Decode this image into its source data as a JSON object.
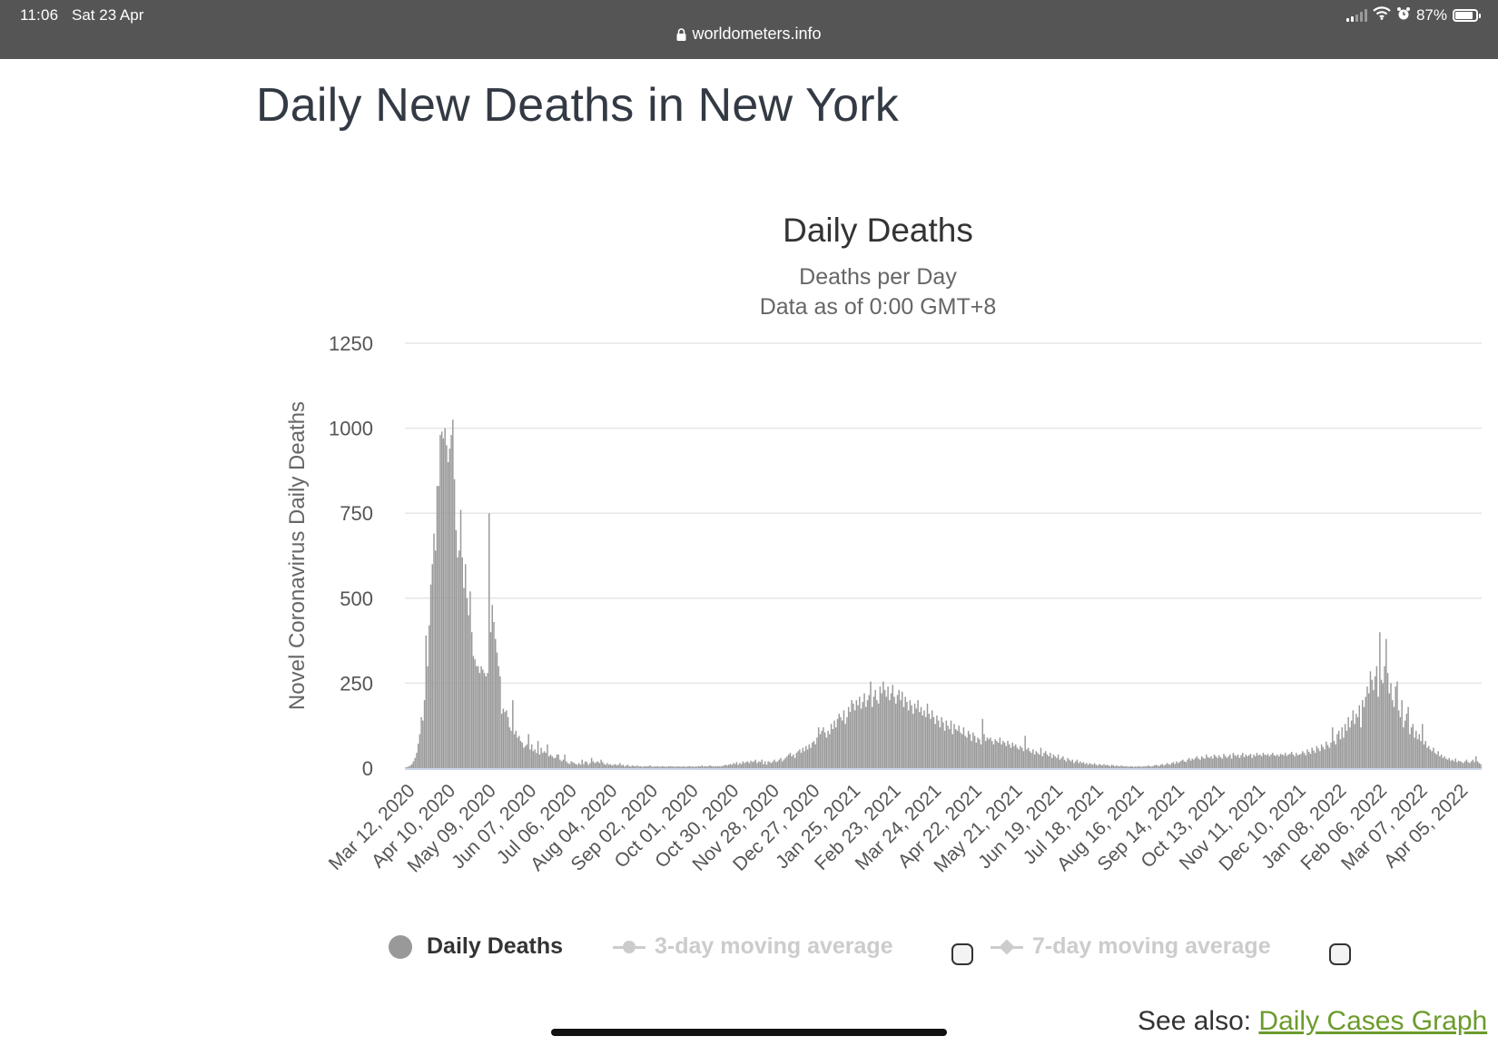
{
  "status_bar": {
    "time": "11:06",
    "date": "Sat 23 Apr",
    "url": "worldometers.info",
    "battery": "87%",
    "battery_level": 0.87,
    "icons": [
      "lock-icon",
      "signal-icon",
      "wifi-icon",
      "alarm-icon",
      "battery-icon"
    ]
  },
  "page": {
    "title": "Daily New Deaths in New York",
    "see_also_label": "See also: ",
    "see_also_link": "Daily Cases Graph"
  },
  "colors": {
    "bar": "#999999",
    "inactive_legend": "#cccccc",
    "link": "#6b9b2b",
    "status_bar": "#555555"
  },
  "legend": {
    "items": [
      {
        "label": "Daily Deaths",
        "active": true
      },
      {
        "label": "3-day moving average",
        "active": false
      },
      {
        "label": "7-day moving average",
        "active": false
      }
    ]
  },
  "chart_data": {
    "type": "bar",
    "title": "Daily Deaths",
    "subtitle": [
      "Deaths per Day",
      "Data as of 0:00 GMT+8"
    ],
    "ylabel": "Novel Coronavirus Daily Deaths",
    "ylim": [
      0,
      1250
    ],
    "yticks": [
      0,
      250,
      500,
      750,
      1000,
      1250
    ],
    "grid": true,
    "legend_position": "bottom",
    "x_start": "2020-03-12",
    "x_end": "2022-04-22",
    "xtick_labels": [
      "Mar 12, 2020",
      "Apr 10, 2020",
      "May 09, 2020",
      "Jun 07, 2020",
      "Jul 06, 2020",
      "Aug 04, 2020",
      "Sep 02, 2020",
      "Oct 01, 2020",
      "Oct 30, 2020",
      "Nov 28, 2020",
      "Dec 27, 2020",
      "Jan 25, 2021",
      "Feb 23, 2021",
      "Mar 24, 2021",
      "Apr 22, 2021",
      "May 21, 2021",
      "Jun 19, 2021",
      "Jul 18, 2021",
      "Aug 16, 2021",
      "Sep 14, 2021",
      "Oct 13, 2021",
      "Nov 11, 2021",
      "Dec 10, 2021",
      "Jan 08, 2022",
      "Feb 06, 2022",
      "Mar 07, 2022",
      "Apr 05, 2022"
    ],
    "series": [
      {
        "name": "Daily Deaths",
        "values": [
          2,
          3,
          5,
          8,
          12,
          20,
          30,
          45,
          72,
          100,
          150,
          140,
          200,
          390,
          300,
          420,
          540,
          600,
          690,
          640,
          830,
          830,
          980,
          990,
          970,
          1000,
          950,
          900,
          940,
          980,
          1025,
          850,
          700,
          620,
          640,
          760,
          620,
          530,
          600,
          500,
          450,
          520,
          400,
          330,
          320,
          300,
          300,
          280,
          300,
          290,
          280,
          270,
          280,
          750,
          400,
          480,
          430,
          380,
          340,
          300,
          270,
          160,
          175,
          165,
          170,
          150,
          120,
          110,
          200,
          100,
          110,
          90,
          95,
          80,
          75,
          60,
          65,
          70,
          100,
          55,
          70,
          50,
          55,
          45,
          80,
          40,
          60,
          45,
          50,
          45,
          70,
          35,
          40,
          35,
          30,
          30,
          40,
          40,
          25,
          20,
          25,
          40,
          20,
          15,
          12,
          20,
          18,
          15,
          12,
          10,
          15,
          10,
          25,
          12,
          20,
          18,
          10,
          15,
          30,
          20,
          15,
          18,
          20,
          15,
          25,
          18,
          12,
          10,
          15,
          10,
          12,
          8,
          10,
          12,
          8,
          10,
          15,
          8,
          10,
          5,
          8,
          10,
          5,
          6,
          8,
          6,
          5,
          8,
          5,
          6,
          4,
          5,
          6,
          5,
          6,
          8,
          5,
          4,
          5,
          5,
          6,
          4,
          5,
          6,
          5,
          4,
          5,
          5,
          6,
          5,
          5,
          4,
          5,
          5,
          5,
          4,
          5,
          5,
          4,
          5,
          6,
          5,
          5,
          4,
          5,
          5,
          6,
          5,
          8,
          5,
          6,
          5,
          6,
          8,
          6,
          5,
          6,
          5,
          6,
          5,
          6,
          6,
          8,
          10,
          8,
          10,
          12,
          10,
          15,
          12,
          18,
          10,
          15,
          12,
          20,
          15,
          18,
          20,
          15,
          22,
          18,
          20,
          25,
          15,
          20,
          18,
          25,
          12,
          20,
          10,
          20,
          18,
          15,
          20,
          25,
          18,
          20,
          25,
          30,
          20,
          25,
          30,
          35,
          40,
          45,
          35,
          40,
          30,
          45,
          50,
          55,
          45,
          60,
          50,
          65,
          55,
          70,
          60,
          75,
          80,
          70,
          90,
          120,
          100,
          110,
          120,
          105,
          90,
          110,
          100,
          130,
          115,
          140,
          120,
          145,
          160,
          150,
          140,
          170,
          130,
          150,
          180,
          165,
          200,
          190,
          170,
          200,
          185,
          210,
          175,
          195,
          220,
          180,
          200,
          215,
          255,
          180,
          210,
          230,
          200,
          190,
          240,
          220,
          255,
          230,
          210,
          240,
          200,
          220,
          245,
          210,
          190,
          215,
          230,
          200,
          225,
          180,
          210,
          195,
          170,
          200,
          185,
          160,
          190,
          175,
          200,
          165,
          180,
          155,
          170,
          150,
          190,
          160,
          145,
          170,
          150,
          130,
          155,
          140,
          120,
          150,
          135,
          110,
          140,
          125,
          115,
          140,
          100,
          130,
          115,
          110,
          125,
          105,
          100,
          120,
          95,
          90,
          110,
          100,
          80,
          105,
          95,
          75,
          90,
          85,
          70,
          145,
          100,
          80,
          90,
          85,
          90,
          80,
          70,
          85,
          80,
          75,
          90,
          70,
          80,
          75,
          65,
          80,
          70,
          60,
          75,
          65,
          70,
          60,
          55,
          65,
          60,
          50,
          95,
          55,
          60,
          50,
          45,
          55,
          40,
          50,
          45,
          40,
          60,
          35,
          45,
          50,
          40,
          35,
          45,
          30,
          40,
          35,
          30,
          40,
          25,
          30,
          35,
          25,
          20,
          30,
          25,
          20,
          25,
          15,
          20,
          25,
          15,
          20,
          15,
          18,
          12,
          15,
          10,
          15,
          12,
          10,
          15,
          10,
          8,
          12,
          10,
          8,
          12,
          8,
          10,
          8,
          6,
          10,
          8,
          6,
          8,
          6,
          5,
          8,
          6,
          5,
          6,
          5,
          4,
          6,
          5,
          4,
          5,
          4,
          6,
          5,
          4,
          5,
          6,
          5,
          8,
          6,
          5,
          6,
          8,
          10,
          8,
          6,
          10,
          12,
          8,
          10,
          15,
          12,
          10,
          15,
          18,
          12,
          20,
          15,
          18,
          22,
          25,
          20,
          18,
          25,
          30,
          22,
          28,
          25,
          30,
          35,
          28,
          25,
          35,
          30,
          28,
          40,
          32,
          30,
          35,
          28,
          40,
          35,
          30,
          38,
          32,
          28,
          42,
          36,
          30,
          35,
          40,
          28,
          45,
          38,
          35,
          40,
          30,
          38,
          45,
          32,
          40,
          35,
          38,
          42,
          30,
          40,
          35,
          45,
          38,
          40,
          35,
          45,
          40,
          38,
          42,
          35,
          40,
          45,
          38,
          36,
          40,
          35,
          42,
          40,
          38,
          45,
          36,
          40,
          42,
          48,
          40,
          35,
          45,
          38,
          40,
          42,
          50,
          45,
          38,
          55,
          48,
          42,
          60,
          52,
          45,
          65,
          58,
          50,
          70,
          62,
          55,
          78,
          68,
          60,
          75,
          120,
          80,
          70,
          100,
          110,
          85,
          120,
          90,
          130,
          110,
          150,
          120,
          140,
          170,
          130,
          160,
          150,
          185,
          120,
          200,
          180,
          210,
          240,
          220,
          285,
          260,
          230,
          270,
          300,
          210,
          400,
          260,
          250,
          300,
          380,
          280,
          220,
          250,
          200,
          180,
          240,
          255,
          170,
          150,
          200,
          120,
          140,
          160,
          180,
          100,
          120,
          130,
          90,
          110,
          85,
          100,
          80,
          130,
          70,
          80,
          60,
          65,
          55,
          50,
          60,
          45,
          40,
          50,
          35,
          40,
          30,
          35,
          28,
          25,
          30,
          22,
          25,
          20,
          28,
          18,
          22,
          20,
          18,
          15,
          20,
          25,
          18,
          15,
          20,
          25,
          18,
          35,
          20,
          15,
          12
        ]
      }
    ]
  }
}
